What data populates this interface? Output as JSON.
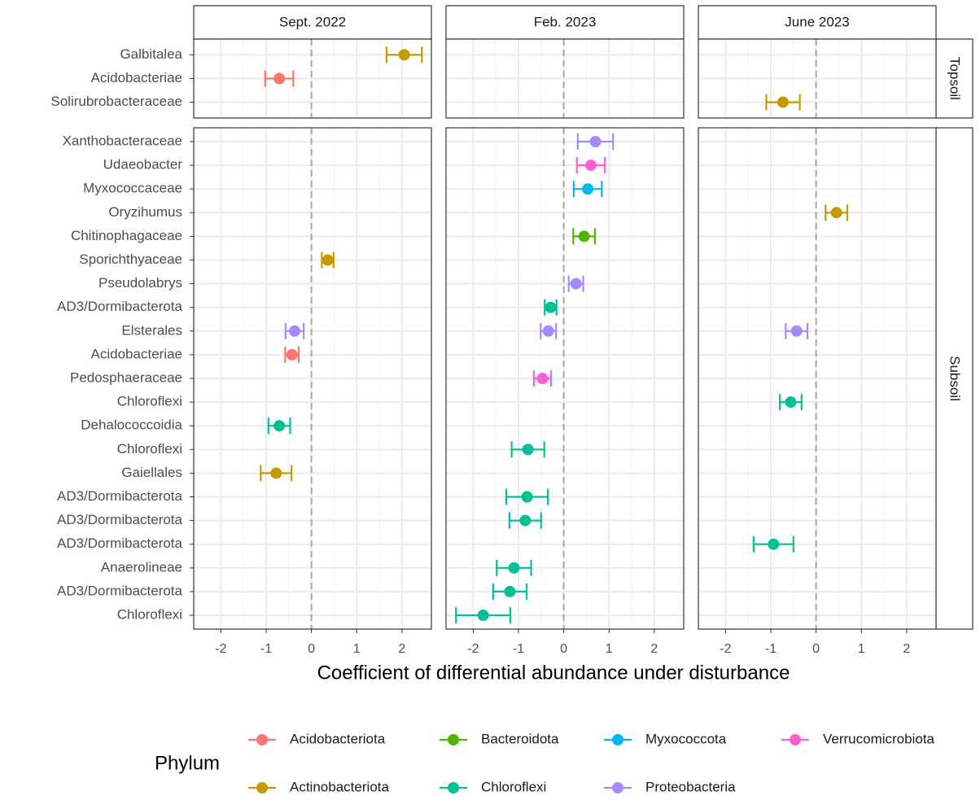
{
  "chart_data": {
    "type": "errorbar",
    "xlabel": "Coefficient of differential abundance under disturbance",
    "columns": [
      "Sept. 2022",
      "Feb. 2023",
      "June 2023"
    ],
    "xlim": [
      -2.6,
      2.65
    ],
    "xticks": [
      -2,
      -1,
      0,
      1,
      2
    ],
    "vline": 0,
    "grid": true,
    "legend_title": "Phylum",
    "series": [
      {
        "name": "Acidobacteriota",
        "color": "#F8766D"
      },
      {
        "name": "Actinobacteriota",
        "color": "#C49A00"
      },
      {
        "name": "Bacteroidota",
        "color": "#53B400"
      },
      {
        "name": "Chloroflexi",
        "color": "#00C094"
      },
      {
        "name": "Myxococcota",
        "color": "#00B6EB"
      },
      {
        "name": "Proteobacteria",
        "color": "#A58AFF"
      },
      {
        "name": "Verrucomicrobiota",
        "color": "#FB61D7"
      }
    ],
    "facet_rows": [
      {
        "label": "Topsoil",
        "categories": [
          "Galbitalea",
          "Acidobacteriae",
          "Solirubrobacteraceae"
        ],
        "phylum": [
          "Actinobacteriota",
          "Acidobacteriota",
          "Actinobacteriota"
        ],
        "values": [
          [
            2.05,
            -0.71,
            null
          ],
          [
            null,
            null,
            null
          ],
          [
            null,
            null,
            -0.73
          ]
        ],
        "errors": [
          [
            0.39,
            0.31,
            null
          ],
          [
            null,
            null,
            null
          ],
          [
            null,
            null,
            0.37
          ]
        ]
      },
      {
        "label": "Subsoil",
        "categories": [
          "Xanthobacteraceae",
          "Udaeobacter",
          "Myxococcaceae",
          "Oryzihumus",
          "Chitinophagaceae",
          "Sporichthyaceae",
          "Pseudolabrys",
          "AD3/Dormibacterota",
          "Elsterales",
          "Acidobacteriae",
          "Pedosphaeraceae",
          "Chloroflexi",
          "Dehalococcoidia",
          "Chloroflexi",
          "Gaiellales",
          "AD3/Dormibacterota",
          "AD3/Dormibacterota",
          "AD3/Dormibacterota",
          "Anaerolineae",
          "AD3/Dormibacterota",
          "Chloroflexi"
        ],
        "phylum": [
          "Proteobacteria",
          "Verrucomicrobiota",
          "Myxococcota",
          "Actinobacteriota",
          "Bacteroidota",
          "Actinobacteriota",
          "Proteobacteria",
          "Chloroflexi",
          "Proteobacteria",
          "Acidobacteriota",
          "Verrucomicrobiota",
          "Chloroflexi",
          "Chloroflexi",
          "Chloroflexi",
          "Actinobacteriota",
          "Chloroflexi",
          "Chloroflexi",
          "Chloroflexi",
          "Chloroflexi",
          "Chloroflexi",
          "Chloroflexi"
        ],
        "values": [
          [
            null,
            null,
            null,
            null,
            null,
            0.36,
            null,
            null,
            -0.37,
            -0.43,
            null,
            null,
            -0.71,
            null,
            -0.78,
            null,
            null,
            null,
            null,
            null,
            null
          ],
          [
            0.7,
            0.6,
            0.53,
            null,
            0.45,
            null,
            0.27,
            -0.29,
            -0.34,
            null,
            -0.47,
            null,
            null,
            -0.79,
            null,
            -0.81,
            -0.85,
            null,
            -1.1,
            -1.19,
            -1.78
          ],
          [
            null,
            null,
            null,
            0.45,
            null,
            null,
            null,
            null,
            -0.43,
            null,
            null,
            -0.56,
            null,
            null,
            null,
            null,
            null,
            -0.94,
            null,
            null,
            null
          ]
        ],
        "errors": [
          [
            null,
            null,
            null,
            null,
            null,
            0.13,
            null,
            null,
            0.2,
            0.15,
            null,
            null,
            0.24,
            null,
            0.34,
            null,
            null,
            null,
            null,
            null,
            null
          ],
          [
            0.39,
            0.31,
            0.31,
            null,
            0.24,
            null,
            0.16,
            0.13,
            0.17,
            null,
            0.19,
            null,
            null,
            0.36,
            null,
            0.46,
            0.35,
            null,
            0.38,
            0.37,
            0.6
          ],
          [
            null,
            null,
            null,
            0.24,
            null,
            null,
            null,
            null,
            0.24,
            null,
            null,
            0.24,
            null,
            null,
            null,
            null,
            null,
            0.44,
            null,
            null,
            null
          ]
        ]
      }
    ]
  }
}
